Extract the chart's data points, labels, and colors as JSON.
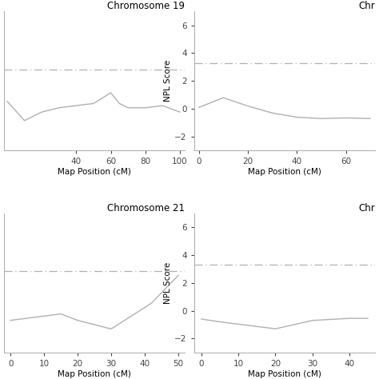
{
  "chr19": {
    "title": "Chromosome 19",
    "x": [
      0,
      10,
      20,
      30,
      40,
      50,
      60,
      65,
      70,
      80,
      90,
      100
    ],
    "y": [
      1.8,
      0.9,
      1.3,
      1.5,
      1.6,
      1.7,
      2.2,
      1.7,
      1.5,
      1.5,
      1.6,
      1.3
    ],
    "xlim": [
      -2,
      103
    ],
    "xticks": [
      40,
      60,
      80,
      100
    ],
    "ylim": [
      -0.5,
      6
    ],
    "yticks": [],
    "show_ylabel": false,
    "show_yticks": false
  },
  "chr20": {
    "title": "Chr",
    "x": [
      0,
      10,
      20,
      30,
      40,
      50,
      60,
      70
    ],
    "y": [
      0.1,
      0.8,
      0.2,
      -0.3,
      -0.6,
      -0.7,
      -0.65,
      -0.7
    ],
    "xlim": [
      -2,
      72
    ],
    "xticks": [
      0,
      20,
      40,
      60
    ],
    "ylim": [
      -3,
      7
    ],
    "yticks": [
      -2,
      0,
      2,
      4,
      6
    ],
    "show_ylabel": true,
    "show_yticks": true
  },
  "chr21": {
    "title": "Chromosome 21",
    "x": [
      0,
      15,
      20,
      30,
      42,
      50
    ],
    "y": [
      1.0,
      1.3,
      1.0,
      0.6,
      1.8,
      3.1
    ],
    "xlim": [
      -2,
      52
    ],
    "xticks": [
      0,
      10,
      20,
      30,
      40,
      50
    ],
    "ylim": [
      -0.5,
      6
    ],
    "yticks": [],
    "show_ylabel": false,
    "show_yticks": false
  },
  "chr22": {
    "title": "Chr",
    "x": [
      0,
      5,
      20,
      30,
      40,
      45
    ],
    "y": [
      -0.6,
      -0.8,
      -1.3,
      -0.7,
      -0.55,
      -0.55
    ],
    "xlim": [
      -2,
      47
    ],
    "xticks": [
      0,
      10,
      20,
      30,
      40
    ],
    "ylim": [
      -3,
      7
    ],
    "yticks": [
      -2,
      0,
      2,
      4,
      6
    ],
    "show_ylabel": true,
    "show_yticks": true
  },
  "hline_y": 3.3,
  "line_color": "#b0b0b0",
  "hline_color": "#b0b0b0",
  "xlabel": "Map Position (cM)",
  "background_color": "#ffffff",
  "font_size": 7.5,
  "title_font_size": 8.5
}
